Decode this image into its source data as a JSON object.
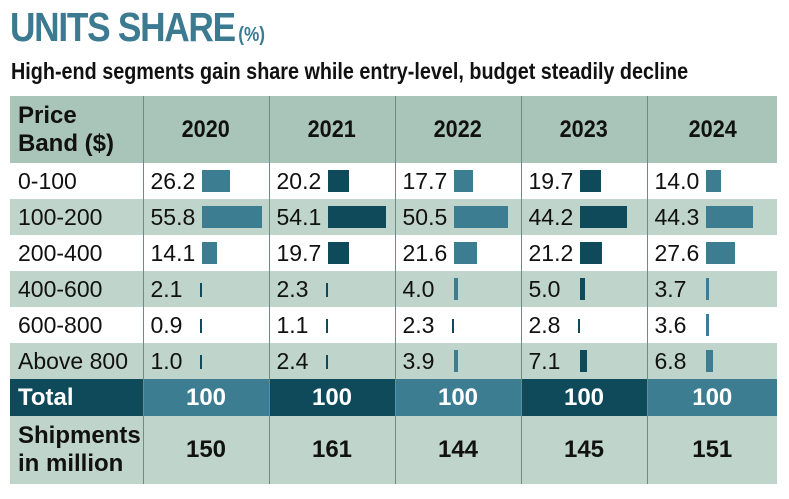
{
  "header": {
    "title": "UNITS SHARE",
    "title_unit": "(%)",
    "subtitle": "High-end segments gain share while entry-level, budget steadily decline"
  },
  "table": {
    "band_header_line1": "Price",
    "band_header_line2": "Band ($)",
    "years": [
      "2020",
      "2021",
      "2022",
      "2023",
      "2024"
    ],
    "rows": [
      {
        "label": "0-100",
        "values": [
          "26.2",
          "20.2",
          "17.7",
          "19.7",
          "14.0"
        ]
      },
      {
        "label": "100-200",
        "values": [
          "55.8",
          "54.1",
          "50.5",
          "44.2",
          "44.3"
        ]
      },
      {
        "label": "200-400",
        "values": [
          "14.1",
          "19.7",
          "21.6",
          "21.2",
          "27.6"
        ]
      },
      {
        "label": "400-600",
        "values": [
          "2.1",
          "2.3",
          "4.0",
          "5.0",
          "3.7"
        ]
      },
      {
        "label": "600-800",
        "values": [
          "0.9",
          "1.1",
          "2.3",
          "2.8",
          "3.6"
        ]
      },
      {
        "label": "Above 800",
        "values": [
          "1.0",
          "2.4",
          "3.9",
          "7.1",
          "6.8"
        ]
      }
    ],
    "total": {
      "label": "Total",
      "values": [
        "100",
        "100",
        "100",
        "100",
        "100"
      ]
    },
    "shipments": {
      "label_line1": "Shipments",
      "label_line2": "in million",
      "values": [
        "150",
        "161",
        "144",
        "145",
        "151"
      ]
    }
  },
  "colors": {
    "title": "#3b7a90",
    "bar_dark": "#0f4a5a",
    "bar_light": "#3d7d92",
    "row_green": "#bfd4ca",
    "header_green": "#a9c4b8"
  },
  "chart_data": {
    "type": "table",
    "title": "UNITS SHARE (%)",
    "subtitle": "High-end segments gain share while entry-level, budget steadily decline",
    "categories": [
      "0-100",
      "100-200",
      "200-400",
      "400-600",
      "600-800",
      "Above 800"
    ],
    "series": [
      {
        "name": "2020",
        "values": [
          26.2,
          55.8,
          14.1,
          2.1,
          0.9,
          1.0
        ],
        "total": 100,
        "shipments_million": 150
      },
      {
        "name": "2021",
        "values": [
          20.2,
          54.1,
          19.7,
          2.3,
          1.1,
          2.4
        ],
        "total": 100,
        "shipments_million": 161
      },
      {
        "name": "2022",
        "values": [
          17.7,
          50.5,
          21.6,
          4.0,
          2.3,
          3.9
        ],
        "total": 100,
        "shipments_million": 144
      },
      {
        "name": "2023",
        "values": [
          19.7,
          44.2,
          21.2,
          5.0,
          2.8,
          7.1
        ],
        "total": 100,
        "shipments_million": 145
      },
      {
        "name": "2024",
        "values": [
          14.0,
          44.3,
          27.6,
          3.7,
          3.6,
          6.8
        ],
        "total": 100,
        "shipments_million": 151
      }
    ],
    "xlabel": "Price Band ($)",
    "ylabel": "Units share (%)"
  }
}
